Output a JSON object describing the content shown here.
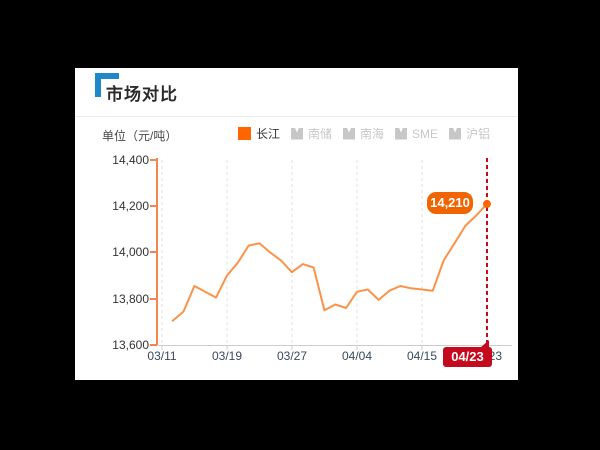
{
  "page": {
    "background": "#000000"
  },
  "card": {
    "title": "市场对比",
    "unit_label": "单位（元/吨）"
  },
  "legend": {
    "items": [
      {
        "label": "长江",
        "active": true
      },
      {
        "label": "南储",
        "active": false
      },
      {
        "label": "南海",
        "active": false
      },
      {
        "label": "SME",
        "active": false
      },
      {
        "label": "沪铝",
        "active": false
      }
    ]
  },
  "colors": {
    "accent_blue": "#1e88c9",
    "legend_active": "#ff6600",
    "legend_inactive": "#c7c7c7",
    "line": "#fb9249",
    "y_axis": "#f5854e",
    "x_axis": "#cccccc",
    "gridline": "#e0e0e0",
    "marker_red": "#c50a1e",
    "tooltip_bg": "#f06502",
    "dot": "#ff6600"
  },
  "chart_data": {
    "type": "line",
    "title": "市场对比",
    "unit": "元/吨",
    "ylim": [
      13600,
      14400
    ],
    "y_tick_labels": [
      "14,400",
      "14,200",
      "14,000",
      "13,800",
      "13,600"
    ],
    "x_tick_labels": [
      "03/11",
      "03/19",
      "03/27",
      "04/04",
      "04/15",
      "04/23"
    ],
    "grid": "vertical-dashed",
    "legend_position": "top",
    "series": [
      {
        "name": "长江",
        "color": "#fb9249",
        "values": [
          13705,
          13745,
          13855,
          13830,
          13805,
          13900,
          13955,
          14030,
          14040,
          14000,
          13965,
          13915,
          13950,
          13935,
          13750,
          13775,
          13760,
          13830,
          13840,
          13795,
          13835,
          13855,
          13845,
          13840,
          13835,
          13965,
          14040,
          14115,
          14160,
          14210
        ]
      }
    ],
    "last_point": {
      "value_label": "14,210",
      "date_label": "04/23"
    }
  }
}
